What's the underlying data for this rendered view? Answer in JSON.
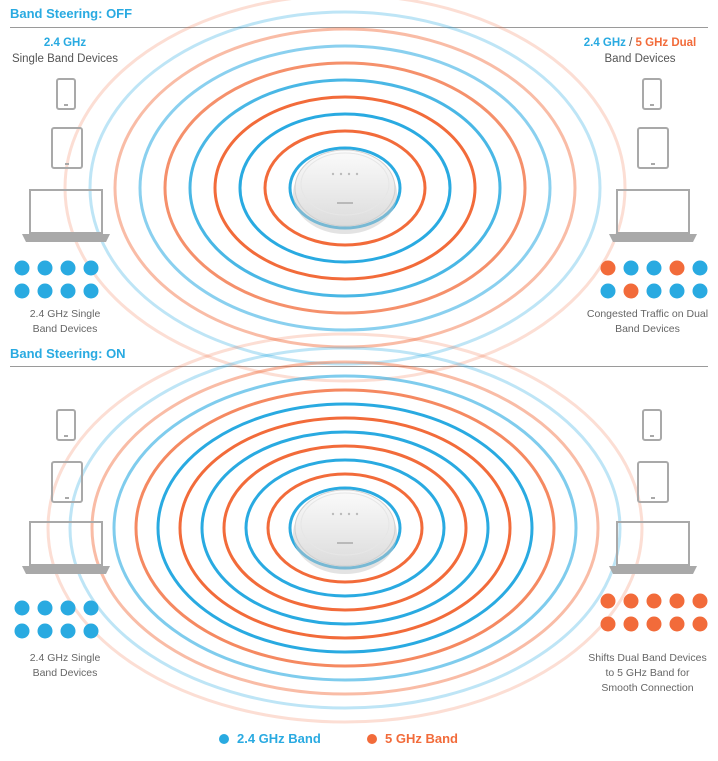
{
  "colors": {
    "band_24": "#29aae1",
    "band_5": "#f26b3a"
  },
  "sections": [
    {
      "title": "Band Steering: OFF",
      "left_header": {
        "band": "2.4 GHz",
        "label": "Single Band Devices"
      },
      "right_header": {
        "band_24": "2.4 GHz",
        "slash": "/",
        "band_5": "5 GHz Dual",
        "label": "Band Devices"
      },
      "left_caption": [
        "2.4 GHz Single",
        "Band Devices"
      ],
      "right_caption": [
        "Congested Traffic on Dual",
        "Band Devices"
      ],
      "left_dots": [
        "blue",
        "blue",
        "blue",
        "blue",
        "blue",
        "blue",
        "blue",
        "blue"
      ],
      "right_dots": [
        "orange",
        "blue",
        "blue",
        "orange",
        "blue",
        "blue",
        "orange",
        "blue",
        "blue",
        "blue"
      ]
    },
    {
      "title": "Band Steering: ON",
      "left_caption": [
        "2.4 GHz Single",
        "Band Devices"
      ],
      "right_caption": [
        "Shifts Dual Band Devices",
        "to 5 GHz Band for",
        "Smooth Connection"
      ],
      "left_dots": [
        "blue",
        "blue",
        "blue",
        "blue",
        "blue",
        "blue",
        "blue",
        "blue"
      ],
      "right_dots": [
        "orange",
        "orange",
        "orange",
        "orange",
        "orange",
        "orange",
        "orange",
        "orange",
        "orange",
        "orange"
      ]
    }
  ],
  "legend": {
    "band_24": "2.4 GHz Band",
    "band_5": "5 GHz Band"
  }
}
